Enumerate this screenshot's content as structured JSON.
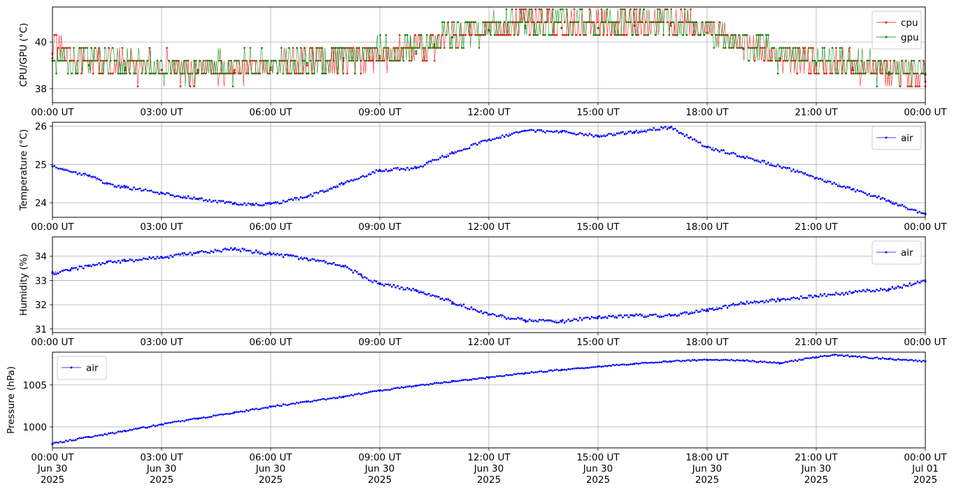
{
  "chart_data": [
    {
      "type": "line",
      "ylabel": "CPU/GPU (°C)",
      "ylim": [
        37.4,
        41.5
      ],
      "yticks": [
        38,
        40
      ],
      "grid": true,
      "legend_position": "top-right",
      "series": [
        {
          "name": "cpu",
          "color": "#ff0000",
          "marker": "dot",
          "x": [
            0,
            1,
            2,
            3,
            4,
            5,
            6,
            7,
            8,
            9,
            10,
            10.5,
            11,
            12,
            13,
            14,
            15,
            16,
            17,
            18,
            19,
            20,
            21,
            22,
            23,
            24
          ],
          "y": [
            39.5,
            39.0,
            38.8,
            38.8,
            38.7,
            38.7,
            38.8,
            39.0,
            39.2,
            39.3,
            39.5,
            39.8,
            40.2,
            40.5,
            40.7,
            40.6,
            40.6,
            40.7,
            40.8,
            40.4,
            39.7,
            39.2,
            39.0,
            38.8,
            38.6,
            38.3
          ]
        },
        {
          "name": "gpu",
          "color": "#008000",
          "marker": "dot",
          "x": [
            0,
            1,
            2,
            3,
            4,
            5,
            6,
            7,
            8,
            9,
            10,
            10.5,
            11,
            12,
            13,
            14,
            15,
            16,
            17,
            18,
            19,
            20,
            21,
            22,
            23,
            24
          ],
          "y": [
            39.3,
            39.0,
            38.9,
            38.8,
            38.8,
            38.8,
            38.9,
            39.1,
            39.3,
            39.4,
            39.6,
            39.9,
            40.2,
            40.5,
            40.6,
            40.6,
            40.6,
            40.7,
            40.7,
            40.4,
            39.7,
            39.3,
            39.1,
            38.9,
            38.7,
            38.6
          ]
        }
      ]
    },
    {
      "type": "line",
      "ylabel": "Temperature (°C)",
      "ylim": [
        23.62,
        26.1
      ],
      "yticks": [
        24,
        25,
        26
      ],
      "grid": true,
      "legend_position": "top-right",
      "series": [
        {
          "name": "air",
          "color": "#0000ff",
          "marker": "dot",
          "x": [
            0,
            1,
            1.5,
            2,
            3,
            4,
            5,
            5.5,
            6,
            7,
            8,
            9,
            10,
            11,
            12,
            13,
            14,
            15,
            16,
            17,
            18,
            19,
            20,
            21,
            22,
            23,
            24
          ],
          "y": [
            24.95,
            24.7,
            24.5,
            24.4,
            24.25,
            24.1,
            23.98,
            23.95,
            23.97,
            24.15,
            24.5,
            24.85,
            24.9,
            25.3,
            25.65,
            25.88,
            25.85,
            25.75,
            25.85,
            25.97,
            25.45,
            25.2,
            24.95,
            24.65,
            24.35,
            24.05,
            23.7
          ]
        }
      ]
    },
    {
      "type": "line",
      "ylabel": "Humidity (%)",
      "ylim": [
        30.85,
        34.8
      ],
      "yticks": [
        31,
        32,
        33,
        34
      ],
      "grid": true,
      "legend_position": "top-right",
      "series": [
        {
          "name": "air",
          "color": "#0000ff",
          "marker": "dot",
          "x": [
            0,
            0.5,
            1,
            1.5,
            2,
            3,
            4,
            5,
            6,
            7,
            8,
            8.5,
            9,
            10,
            11,
            12,
            13,
            14,
            15,
            16,
            17,
            18,
            19,
            20,
            21,
            22,
            23,
            24
          ],
          "y": [
            33.3,
            33.45,
            33.6,
            33.75,
            33.8,
            33.95,
            34.15,
            34.3,
            34.1,
            33.9,
            33.6,
            33.2,
            32.85,
            32.6,
            32.1,
            31.6,
            31.35,
            31.3,
            31.5,
            31.55,
            31.55,
            31.8,
            32.05,
            32.2,
            32.35,
            32.5,
            32.65,
            32.95
          ]
        }
      ]
    },
    {
      "type": "line",
      "ylabel": "Pressure (hPa)",
      "ylim": [
        997.5,
        1008.9
      ],
      "yticks": [
        1000,
        1005
      ],
      "grid": true,
      "legend_position": "top-left",
      "series": [
        {
          "name": "air",
          "color": "#0000ff",
          "marker": "dot",
          "x": [
            0,
            1,
            2,
            3,
            4,
            5,
            6,
            7,
            8,
            9,
            10,
            11,
            12,
            13,
            14,
            15,
            16,
            17,
            18,
            19,
            20,
            21,
            21.5,
            22,
            23,
            24
          ],
          "y": [
            998.0,
            998.8,
            999.5,
            1000.3,
            1001.0,
            1001.7,
            1002.4,
            1003.0,
            1003.6,
            1004.3,
            1004.9,
            1005.4,
            1005.9,
            1006.4,
            1006.8,
            1007.2,
            1007.5,
            1007.8,
            1008.0,
            1007.9,
            1007.6,
            1008.3,
            1008.6,
            1008.4,
            1008.1,
            1007.8
          ]
        }
      ]
    }
  ],
  "x_axis": {
    "range_hours": [
      0,
      24
    ],
    "tick_hours": [
      0,
      3,
      6,
      9,
      12,
      15,
      18,
      21,
      24
    ],
    "tick_labels": [
      "00:00 UT",
      "03:00 UT",
      "06:00 UT",
      "09:00 UT",
      "12:00 UT",
      "15:00 UT",
      "18:00 UT",
      "21:00 UT",
      "00:00 UT"
    ],
    "date_labels": [
      "Jun 30",
      "Jun 30",
      "Jun 30",
      "Jun 30",
      "Jun 30",
      "Jun 30",
      "Jun 30",
      "Jun 30",
      "Jul 01"
    ],
    "year_labels": [
      "2025",
      "2025",
      "2025",
      "2025",
      "2025",
      "2025",
      "2025",
      "2025",
      "2025"
    ]
  }
}
